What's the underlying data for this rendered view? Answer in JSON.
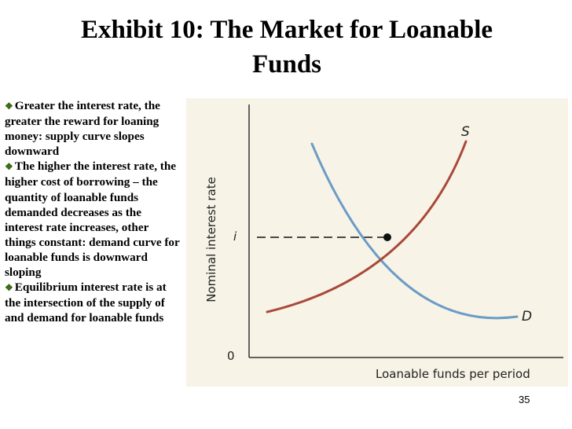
{
  "slide": {
    "title_line1": "Exhibit 10: The Market for Loanable",
    "title_line2": "Funds",
    "page_number": "35"
  },
  "bullets": [
    {
      "marker": "❖",
      "text": "Greater the interest rate, the greater the reward for loaning money: supply curve slopes downward"
    },
    {
      "marker": "❖",
      "text": "The higher the interest rate, the higher cost of borrowing – the quantity of loanable funds demanded decreases as the interest rate increases, other things constant: demand curve for loanable funds is downward sloping"
    },
    {
      "marker": "❖",
      "text": "Equilibrium interest rate is at the intersection of the supply of and demand for loanable funds"
    }
  ],
  "diagram": {
    "ylabel": "Nominal interest rate",
    "xlabel": "Loanable funds per period",
    "origin_label": "0",
    "equilibrium_label": "i",
    "supply_label": "S",
    "demand_label": "D",
    "colors": {
      "supply": "#a8493a",
      "demand": "#6b9cc6",
      "background": "#f7f3e6",
      "axis": "#333333"
    }
  }
}
